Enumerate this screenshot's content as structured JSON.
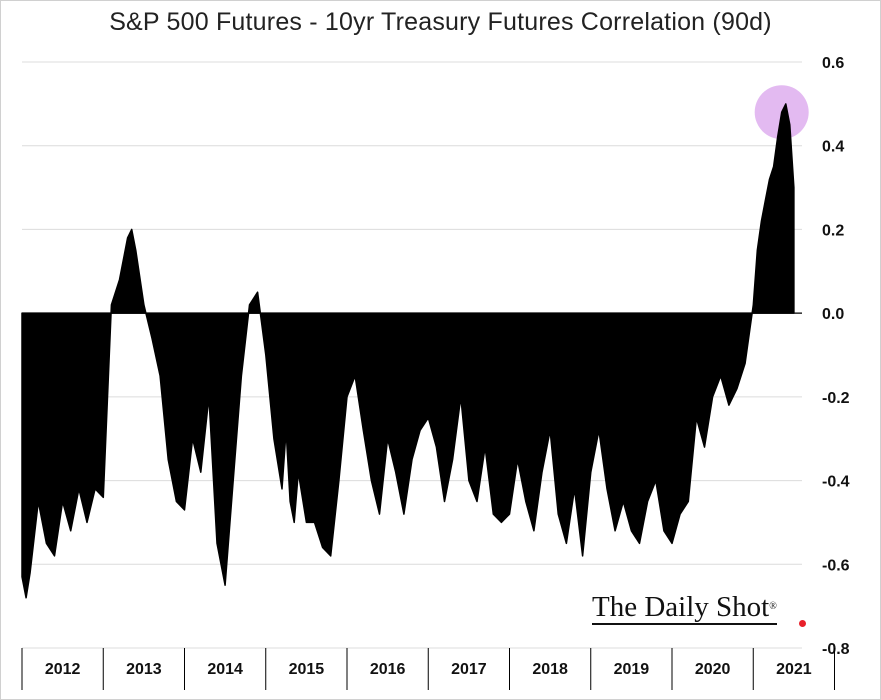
{
  "chart_data": {
    "type": "area",
    "title": "S&P 500 Futures - 10yr Treasury Futures Correlation (90d)",
    "xlabel": "",
    "ylabel": "",
    "ylim": [
      -0.8,
      0.6
    ],
    "yticks": [
      0.6,
      0.4,
      0.2,
      0.0,
      -0.2,
      -0.4,
      -0.6,
      -0.8
    ],
    "ytick_labels": [
      "0.6",
      "0.4",
      "0.2",
      "0.0",
      "-0.2",
      "-0.4",
      "-0.6",
      "-0.8"
    ],
    "xlim": [
      2012.0,
      2021.6
    ],
    "years": [
      "2012",
      "2013",
      "2014",
      "2015",
      "2016",
      "2017",
      "2018",
      "2019",
      "2020",
      "2021"
    ],
    "grid": true,
    "highlight": {
      "x": 2021.35,
      "y": 0.48,
      "color": "#e0b3f0"
    },
    "series": [
      {
        "name": "90d correlation",
        "color": "#000000",
        "x": [
          2012.0,
          2012.05,
          2012.1,
          2012.2,
          2012.3,
          2012.4,
          2012.5,
          2012.6,
          2012.7,
          2012.8,
          2012.9,
          2013.0,
          2013.1,
          2013.2,
          2013.3,
          2013.35,
          2013.4,
          2013.5,
          2013.55,
          2013.6,
          2013.7,
          2013.8,
          2013.9,
          2014.0,
          2014.1,
          2014.2,
          2014.3,
          2014.4,
          2014.5,
          2014.6,
          2014.7,
          2014.8,
          2014.9,
          2015.0,
          2015.1,
          2015.2,
          2015.25,
          2015.3,
          2015.35,
          2015.4,
          2015.5,
          2015.6,
          2015.7,
          2015.8,
          2015.9,
          2016.0,
          2016.1,
          2016.2,
          2016.3,
          2016.4,
          2016.5,
          2016.6,
          2016.7,
          2016.8,
          2016.9,
          2017.0,
          2017.1,
          2017.2,
          2017.3,
          2017.4,
          2017.5,
          2017.6,
          2017.7,
          2017.8,
          2017.9,
          2018.0,
          2018.1,
          2018.2,
          2018.3,
          2018.4,
          2018.5,
          2018.6,
          2018.7,
          2018.8,
          2018.9,
          2019.0,
          2019.1,
          2019.2,
          2019.3,
          2019.4,
          2019.5,
          2019.6,
          2019.7,
          2019.8,
          2019.9,
          2020.0,
          2020.1,
          2020.2,
          2020.3,
          2020.4,
          2020.5,
          2020.6,
          2020.7,
          2020.8,
          2020.9,
          2021.0,
          2021.05,
          2021.1,
          2021.15,
          2021.2,
          2021.25,
          2021.3,
          2021.35,
          2021.4,
          2021.45,
          2021.5
        ],
        "y": [
          -0.63,
          -0.68,
          -0.62,
          -0.45,
          -0.55,
          -0.58,
          -0.45,
          -0.52,
          -0.42,
          -0.5,
          -0.42,
          -0.44,
          0.02,
          0.08,
          0.18,
          0.2,
          0.15,
          0.02,
          -0.02,
          -0.06,
          -0.15,
          -0.35,
          -0.45,
          -0.47,
          -0.3,
          -0.38,
          -0.2,
          -0.55,
          -0.65,
          -0.4,
          -0.15,
          0.02,
          0.05,
          -0.1,
          -0.3,
          -0.42,
          -0.28,
          -0.45,
          -0.5,
          -0.38,
          -0.5,
          -0.5,
          -0.56,
          -0.58,
          -0.4,
          -0.2,
          -0.15,
          -0.28,
          -0.4,
          -0.48,
          -0.3,
          -0.38,
          -0.48,
          -0.35,
          -0.28,
          -0.25,
          -0.32,
          -0.45,
          -0.35,
          -0.2,
          -0.4,
          -0.45,
          -0.32,
          -0.48,
          -0.5,
          -0.48,
          -0.35,
          -0.45,
          -0.52,
          -0.38,
          -0.28,
          -0.48,
          -0.55,
          -0.42,
          -0.58,
          -0.38,
          -0.28,
          -0.42,
          -0.52,
          -0.45,
          -0.52,
          -0.55,
          -0.45,
          -0.4,
          -0.52,
          -0.55,
          -0.48,
          -0.45,
          -0.25,
          -0.32,
          -0.2,
          -0.15,
          -0.22,
          -0.18,
          -0.12,
          0.02,
          0.15,
          0.22,
          0.27,
          0.32,
          0.35,
          0.42,
          0.48,
          0.5,
          0.45,
          0.3
        ]
      }
    ]
  },
  "branding": {
    "text": "The Daily Shot",
    "mark": "®"
  }
}
